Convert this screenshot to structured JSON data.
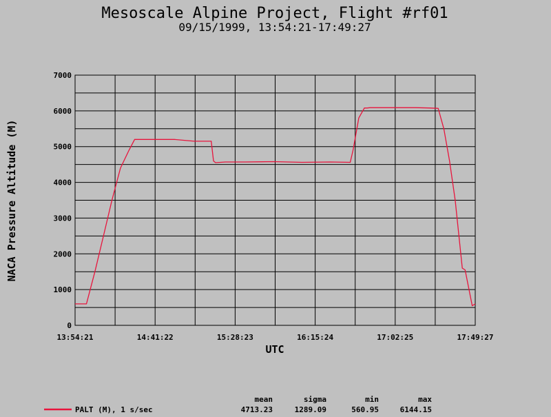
{
  "chart_data": {
    "type": "line",
    "title": "Mesoscale Alpine Project, Flight #rf01",
    "subtitle": "09/15/1999, 13:54:21-17:49:27",
    "xlabel": "UTC",
    "ylabel": "NACA Pressure Altitude (M)",
    "ylim": [
      0,
      7000
    ],
    "xlim_seconds": [
      0,
      14106
    ],
    "yticks": [
      0,
      1000,
      2000,
      3000,
      4000,
      5000,
      6000,
      7000
    ],
    "xticks": [
      "13:54:21",
      "14:41:22",
      "15:28:23",
      "16:15:24",
      "17:02:25",
      "17:49:27"
    ],
    "grid": true,
    "colors": {
      "series": "#e8143c",
      "background": "#c0c0c0",
      "grid": "#000000"
    },
    "series": [
      {
        "name": "PALT (M), 1 s/sec",
        "x": [
          0,
          200,
          400,
          700,
          1000,
          1300,
          1600,
          1900,
          2100,
          2400,
          2900,
          3500,
          4200,
          4700,
          4800,
          4880,
          4950,
          5300,
          6000,
          7000,
          8000,
          9000,
          9700,
          9800,
          10000,
          10200,
          10300,
          10400,
          11000,
          12000,
          12500,
          12800,
          13000,
          13200,
          13400,
          13650,
          13750,
          14000,
          14106
        ],
        "y": [
          600,
          600,
          600,
          1500,
          2500,
          3500,
          4400,
          4900,
          5200,
          5200,
          5200,
          5200,
          5150,
          5150,
          5150,
          4600,
          4550,
          4570,
          4570,
          4580,
          4560,
          4570,
          4560,
          4900,
          5800,
          6080,
          6080,
          6090,
          6090,
          6090,
          6080,
          6070,
          5500,
          4600,
          3500,
          1600,
          1550,
          550,
          600
        ]
      }
    ]
  },
  "legend": {
    "label": "PALT (M), 1 s/sec",
    "color": "#e8143c"
  },
  "stats": {
    "headers": {
      "mean": "mean",
      "sigma": "sigma",
      "min": "min",
      "max": "max"
    },
    "values": {
      "mean": "4713.23",
      "sigma": "1289.09",
      "min": "560.95",
      "max": "6144.15"
    }
  }
}
